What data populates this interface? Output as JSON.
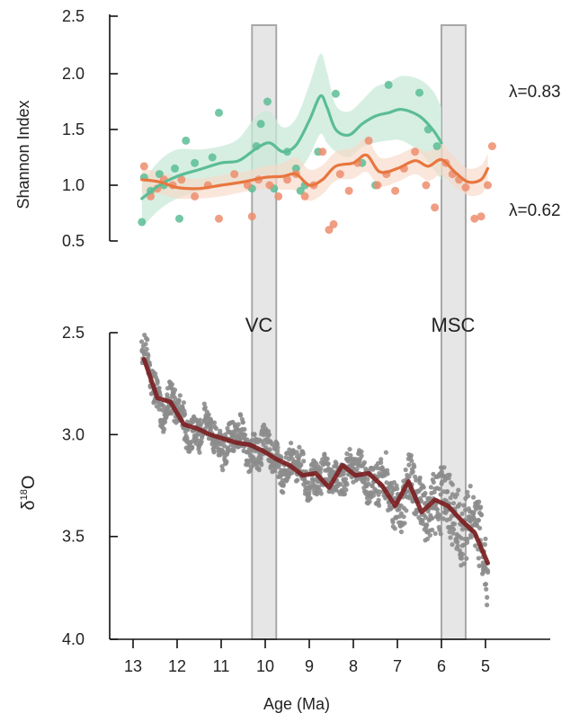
{
  "colors": {
    "teal": "#5bbd95",
    "teal_band": "#c9ead9",
    "orange": "#e8763f",
    "orange_point": "#ec8d6d",
    "orange_band": "#f8d8c8",
    "grey_point": "#8c8c8c",
    "dark_red": "#7c1f22",
    "shade": "#d9d9d9",
    "shade_edge": "#a8a8a8"
  },
  "chart_data": [
    {
      "type": "scatter",
      "panel": "top",
      "ylabel": "Shannon Index",
      "xlim": [
        13.9,
        4.4
      ],
      "ylim": [
        0.3,
        2.55
      ],
      "yticks": [
        "2.5",
        "2.0",
        "1.5",
        "1.0",
        "0.5"
      ],
      "shaded_intervals": [
        {
          "label": "VC",
          "x_start": 10.3,
          "x_end": 9.75
        },
        {
          "label": "MSC",
          "x_start": 6.0,
          "x_end": 5.45
        }
      ],
      "series": [
        {
          "label": "λ=0.83",
          "color": "teal",
          "smooth_x": [
            12.8,
            12.4,
            12.0,
            11.5,
            11.0,
            10.6,
            10.2,
            9.9,
            9.6,
            9.3,
            9.0,
            8.75,
            8.6,
            8.4,
            8.1,
            7.8,
            7.5,
            7.2,
            6.9,
            6.5,
            6.2,
            6.0
          ],
          "smooth_y": [
            0.88,
            1.0,
            1.08,
            1.14,
            1.2,
            1.22,
            1.33,
            1.38,
            1.3,
            1.36,
            1.58,
            1.8,
            1.7,
            1.5,
            1.45,
            1.55,
            1.62,
            1.65,
            1.68,
            1.62,
            1.5,
            1.38
          ],
          "band_upper": [
            1.02,
            1.22,
            1.32,
            1.32,
            1.35,
            1.42,
            1.62,
            1.66,
            1.52,
            1.6,
            1.9,
            2.18,
            2.02,
            1.72,
            1.66,
            1.76,
            1.88,
            1.92,
            1.98,
            1.95,
            1.85,
            1.7
          ],
          "band_lower": [
            0.62,
            0.78,
            0.88,
            0.94,
            1.0,
            1.0,
            1.02,
            1.1,
            1.06,
            1.1,
            1.26,
            1.46,
            1.38,
            1.3,
            1.25,
            1.34,
            1.38,
            1.4,
            1.4,
            1.3,
            1.15,
            1.05
          ],
          "points": [
            [
              12.8,
              0.67
            ],
            [
              12.75,
              1.07
            ],
            [
              12.6,
              0.95
            ],
            [
              12.4,
              1.1
            ],
            [
              12.3,
              1.0
            ],
            [
              12.05,
              1.15
            ],
            [
              11.95,
              0.7
            ],
            [
              11.8,
              1.4
            ],
            [
              11.6,
              1.2
            ],
            [
              11.2,
              1.25
            ],
            [
              11.05,
              1.65
            ],
            [
              10.3,
              0.97
            ],
            [
              10.2,
              1.35
            ],
            [
              10.1,
              1.55
            ],
            [
              9.95,
              1.75
            ],
            [
              9.8,
              0.97
            ],
            [
              9.5,
              1.3
            ],
            [
              9.3,
              1.15
            ],
            [
              9.2,
              0.95
            ],
            [
              9.1,
              1.0
            ],
            [
              8.8,
              1.3
            ],
            [
              8.4,
              1.82
            ],
            [
              7.8,
              1.2
            ],
            [
              7.5,
              1.0
            ],
            [
              7.2,
              1.9
            ],
            [
              6.5,
              1.83
            ],
            [
              6.3,
              1.5
            ],
            [
              6.1,
              1.35
            ]
          ]
        },
        {
          "label": "λ=0.62",
          "color": "orange",
          "smooth_x": [
            12.8,
            12.4,
            12.0,
            11.5,
            11.0,
            10.5,
            10.0,
            9.6,
            9.3,
            9.0,
            8.7,
            8.4,
            8.0,
            7.7,
            7.4,
            7.0,
            6.6,
            6.3,
            6.0,
            5.7,
            5.4,
            5.1,
            4.95
          ],
          "smooth_y": [
            1.05,
            1.03,
            0.98,
            0.97,
            1.0,
            1.03,
            1.07,
            1.08,
            1.1,
            1.0,
            1.05,
            1.17,
            1.2,
            1.27,
            1.12,
            1.15,
            1.22,
            1.17,
            1.23,
            1.12,
            1.03,
            1.05,
            1.15
          ],
          "band_upper": [
            1.15,
            1.12,
            1.07,
            1.06,
            1.09,
            1.12,
            1.17,
            1.2,
            1.25,
            1.14,
            1.18,
            1.3,
            1.34,
            1.42,
            1.25,
            1.27,
            1.34,
            1.3,
            1.37,
            1.25,
            1.15,
            1.18,
            1.28
          ],
          "band_lower": [
            0.93,
            0.92,
            0.88,
            0.88,
            0.9,
            0.94,
            0.97,
            0.96,
            0.95,
            0.86,
            0.92,
            1.04,
            1.06,
            1.12,
            0.99,
            1.03,
            1.1,
            1.04,
            1.09,
            0.99,
            0.91,
            0.92,
            1.02
          ],
          "points": [
            [
              12.75,
              1.17
            ],
            [
              12.6,
              0.9
            ],
            [
              12.45,
              0.97
            ],
            [
              12.3,
              1.05
            ],
            [
              12.1,
              1.0
            ],
            [
              11.9,
              1.05
            ],
            [
              11.6,
              0.9
            ],
            [
              11.3,
              1.0
            ],
            [
              11.05,
              0.7
            ],
            [
              10.7,
              1.1
            ],
            [
              10.4,
              1.0
            ],
            [
              10.3,
              0.72
            ],
            [
              10.15,
              1.05
            ],
            [
              9.9,
              1.0
            ],
            [
              9.7,
              0.9
            ],
            [
              9.5,
              1.05
            ],
            [
              9.3,
              1.1
            ],
            [
              9.1,
              0.9
            ],
            [
              8.9,
              1.0
            ],
            [
              8.7,
              1.3
            ],
            [
              8.55,
              0.6
            ],
            [
              8.45,
              0.65
            ],
            [
              8.3,
              1.1
            ],
            [
              8.1,
              0.95
            ],
            [
              7.9,
              1.2
            ],
            [
              7.65,
              1.4
            ],
            [
              7.45,
              1.0
            ],
            [
              7.25,
              1.1
            ],
            [
              7.05,
              0.95
            ],
            [
              6.85,
              1.15
            ],
            [
              6.6,
              1.3
            ],
            [
              6.35,
              1.0
            ],
            [
              6.15,
              0.8
            ],
            [
              5.9,
              1.2
            ],
            [
              5.75,
              1.1
            ],
            [
              5.6,
              1.05
            ],
            [
              5.45,
              0.98
            ],
            [
              5.25,
              0.7
            ],
            [
              5.1,
              0.72
            ],
            [
              4.95,
              1.0
            ],
            [
              4.85,
              1.35
            ]
          ]
        }
      ]
    },
    {
      "type": "line",
      "panel": "bottom",
      "ylabel": "δ¹⁸O",
      "ylabel_main": "δ",
      "ylabel_sup": "18",
      "ylabel_tail": "O",
      "xlabel": "Age (Ma)",
      "xlim": [
        13.9,
        4.4
      ],
      "xticks": [
        "13",
        "12",
        "11",
        "10",
        "9",
        "8",
        "7",
        "6",
        "5"
      ],
      "ylim_inverted": [
        2.4,
        4.0
      ],
      "yticks": [
        "2.5",
        "3.0",
        "3.5",
        "4.0"
      ],
      "period_labels": [
        "VC",
        "MSC"
      ],
      "series": [
        {
          "name": "smoothed",
          "color": "dark_red",
          "x": [
            12.75,
            12.45,
            12.15,
            11.85,
            11.55,
            11.25,
            10.95,
            10.65,
            10.35,
            10.05,
            9.75,
            9.45,
            9.15,
            8.85,
            8.55,
            8.25,
            7.95,
            7.65,
            7.35,
            7.05,
            6.75,
            6.45,
            6.15,
            5.85,
            5.55,
            5.25,
            4.95
          ],
          "y": [
            2.63,
            2.82,
            2.84,
            2.95,
            2.97,
            3.0,
            3.02,
            3.04,
            3.05,
            3.08,
            3.12,
            3.15,
            3.2,
            3.19,
            3.26,
            3.15,
            3.2,
            3.19,
            3.25,
            3.35,
            3.23,
            3.38,
            3.32,
            3.35,
            3.42,
            3.48,
            3.63
          ]
        }
      ],
      "raw_points": {
        "color": "grey_point",
        "x_range": [
          12.8,
          4.95
        ],
        "description": "dense raw record"
      }
    }
  ]
}
